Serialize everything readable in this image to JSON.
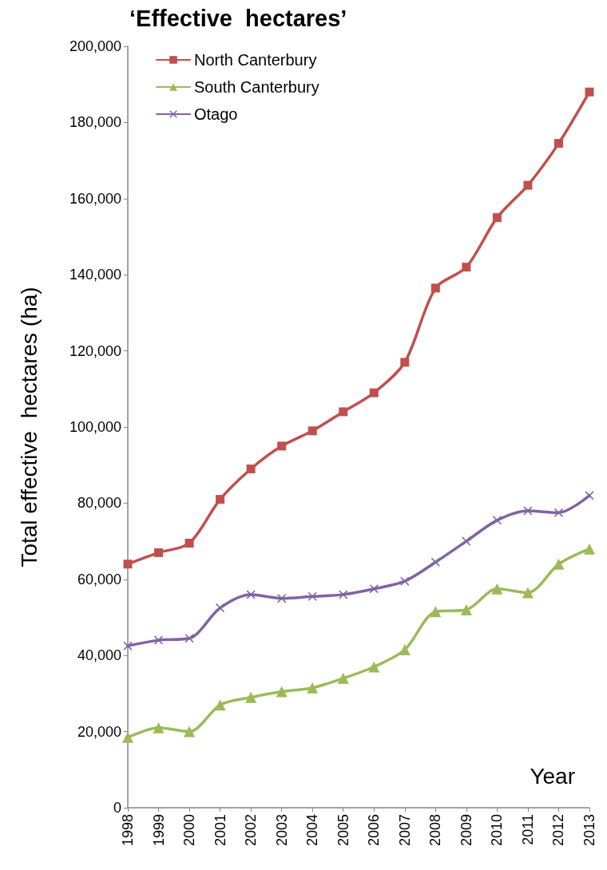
{
  "chart_data": {
    "type": "line",
    "title": "‘Effective  hectares’",
    "xlabel": "Year",
    "ylabel": "Total effective  hectares (ha)",
    "categories": [
      "1998",
      "1999",
      "2000",
      "2001",
      "2002",
      "2003",
      "2004",
      "2005",
      "2006",
      "2007",
      "2008",
      "2009",
      "2010",
      "2011",
      "2012",
      "2013"
    ],
    "series": [
      {
        "name": "North Canterbury",
        "color": "#c0504d",
        "marker": "square",
        "values": [
          64000,
          67000,
          69500,
          81000,
          89000,
          95000,
          99000,
          104000,
          109000,
          117000,
          136500,
          142000,
          155000,
          163500,
          174500,
          188000
        ]
      },
      {
        "name": "South Canterbury",
        "color": "#9bbb59",
        "marker": "triangle",
        "values": [
          18500,
          21000,
          20000,
          27000,
          29000,
          30500,
          31500,
          34000,
          37000,
          41500,
          51500,
          52000,
          57500,
          56500,
          64000,
          68000
        ]
      },
      {
        "name": "Otago",
        "color": "#8064a2",
        "marker": "cross",
        "values": [
          42500,
          44000,
          44500,
          52500,
          56000,
          55000,
          55500,
          56000,
          57500,
          59500,
          64500,
          70000,
          75500,
          78000,
          77500,
          82000
        ]
      }
    ],
    "ylim": [
      0,
      200000
    ],
    "yticks": [
      0,
      {
        "value": 20000,
        "label": "20,000"
      },
      {
        "value": 40000,
        "label": "40,000"
      },
      {
        "value": 60000,
        "label": "60,000"
      },
      {
        "value": 80000,
        "label": "80,000"
      },
      {
        "value": 100000,
        "label": "100,000"
      },
      {
        "value": 120000,
        "label": "120,000"
      },
      {
        "value": 140000,
        "label": "140,000"
      },
      {
        "value": 160000,
        "label": "160,000"
      },
      {
        "value": 180000,
        "label": "180,000"
      },
      {
        "value": 200000,
        "label": "200,000"
      }
    ],
    "grid": false,
    "legend": "top left",
    "line_style": "solid"
  }
}
